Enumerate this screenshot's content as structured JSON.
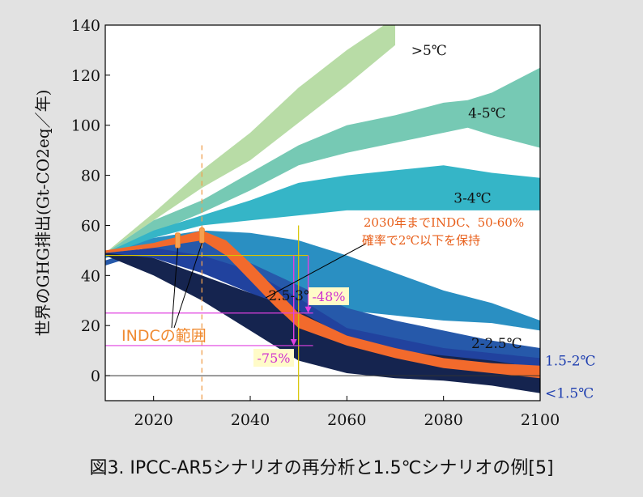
{
  "chart_data": {
    "type": "area",
    "ylabel": "世界のGHG排出(Gt-CO2eq／年)",
    "xlim": [
      2010,
      2100
    ],
    "ylim": [
      -10,
      140
    ],
    "x_ticks": [
      2020,
      2040,
      2060,
      2080,
      2100
    ],
    "y_ticks": [
      0,
      20,
      40,
      60,
      80,
      100,
      120,
      140
    ],
    "bands": [
      {
        "name": ">5℃",
        "color": "#b8dca6",
        "x": [
          2010,
          2020,
          2030,
          2040,
          2050,
          2060,
          2070
        ],
        "lower": [
          49,
          62,
          75,
          86,
          101,
          116,
          132
        ],
        "upper": [
          49,
          65,
          82,
          97,
          115,
          130,
          143
        ]
      },
      {
        "name": "4-5℃",
        "color": "#76c9b4",
        "x": [
          2010,
          2020,
          2030,
          2040,
          2050,
          2060,
          2070,
          2080,
          2085,
          2090,
          2100
        ],
        "lower": [
          48,
          57,
          65,
          74,
          84,
          89,
          93,
          97,
          99,
          96,
          91
        ],
        "upper": [
          49,
          62,
          70,
          81,
          92,
          100,
          104,
          109,
          110,
          113,
          123
        ]
      },
      {
        "name": "3-4℃",
        "color": "#35b5c7",
        "x": [
          2010,
          2020,
          2030,
          2040,
          2050,
          2060,
          2070,
          2080,
          2090,
          2100
        ],
        "lower": [
          47,
          55,
          60,
          62,
          64,
          66,
          66,
          66,
          66,
          66
        ],
        "upper": [
          49,
          58,
          64,
          70,
          77,
          80,
          82,
          84,
          81,
          79
        ]
      },
      {
        "name": "2.5-3℃",
        "color": "#2a8fc2",
        "x": [
          2010,
          2020,
          2030,
          2040,
          2050,
          2060,
          2070,
          2080,
          2090,
          2100
        ],
        "lower": [
          47,
          52,
          49,
          42,
          33,
          26,
          24,
          22,
          21,
          18
        ],
        "upper": [
          48,
          55,
          58,
          57,
          54,
          48,
          41,
          34,
          29,
          22
        ]
      },
      {
        "name": "2-2.5℃",
        "color": "#2659aa",
        "x": [
          2010,
          2020,
          2030,
          2040,
          2050,
          2060,
          2070,
          2080,
          2090,
          2100
        ],
        "lower": [
          44,
          50,
          46,
          37,
          24,
          14,
          11,
          8,
          6,
          5
        ],
        "upper": [
          46,
          52,
          54,
          45,
          36,
          27,
          22,
          18,
          14,
          11
        ]
      },
      {
        "name": "1.5-2℃",
        "color": "#21429e",
        "x": [
          2010,
          2020,
          2030,
          2040,
          2050,
          2060,
          2070,
          2080,
          2090,
          2100
        ],
        "lower": [
          48,
          47,
          41,
          33,
          20,
          10,
          7,
          5,
          3,
          2
        ],
        "upper": [
          49,
          51,
          48,
          42,
          31,
          19,
          15,
          11,
          9,
          7
        ]
      },
      {
        "name": "<1.5℃",
        "color": "#15244f",
        "x": [
          2010,
          2020,
          2030,
          2040,
          2050,
          2060,
          2070,
          2080,
          2090,
          2100
        ],
        "lower": [
          48,
          40,
          30,
          18,
          6,
          1,
          -1,
          -2,
          -4,
          -7
        ],
        "upper": [
          49,
          47,
          40,
          33,
          26,
          15,
          10,
          8,
          6,
          3
        ]
      },
      {
        "name": "2030年までINDC、50-60%確率で2℃以下を保持",
        "color": "#f26a2c",
        "x": [
          2010,
          2020,
          2030,
          2035,
          2040,
          2045,
          2050,
          2060,
          2070,
          2080,
          2090,
          2100
        ],
        "lower": [
          49,
          51,
          54,
          48,
          38,
          28,
          19,
          12,
          7,
          3,
          1,
          -1
        ],
        "upper": [
          50,
          53,
          58,
          54,
          45,
          35,
          25,
          16,
          11,
          7,
          5,
          4
        ]
      }
    ],
    "band_labels": [
      {
        "text": ">5℃",
        "x": 2077,
        "y": 130
      },
      {
        "text": "4-5℃",
        "x": 2089,
        "y": 105
      },
      {
        "text": "3-4℃",
        "x": 2086,
        "y": 71
      },
      {
        "text": "2.5-3℃",
        "x": 2049,
        "y": 32
      },
      {
        "text": "2-2.5℃",
        "x": 2091,
        "y": 13
      },
      {
        "text": "1.5-2℃",
        "x": 2101,
        "y": 6,
        "color": "#1f3fb0"
      },
      {
        "text": "<1.5℃",
        "x": 2101,
        "y": -7,
        "color": "#1f3fb0"
      }
    ],
    "indc_markers": [
      {
        "x": 2025,
        "y1": 51,
        "y2": 57
      },
      {
        "x": 2030,
        "y1": 53,
        "y2": 59
      }
    ],
    "annotations": {
      "indc_label": "INDCの範囲",
      "scenario_label_line1": "2030年までINDC、50-60%",
      "scenario_label_line2": "確率で2℃以下を保持",
      "pct_48": "-48%",
      "pct_75": "-75%"
    },
    "reference_lines": {
      "dashed_vertical_x": 2030,
      "vertical_x": 2050,
      "horizontal_y": [
        48,
        25,
        12
      ]
    }
  },
  "caption": "図3. IPCC-AR5シナリオの再分析と1.5℃シナリオの例[5]"
}
